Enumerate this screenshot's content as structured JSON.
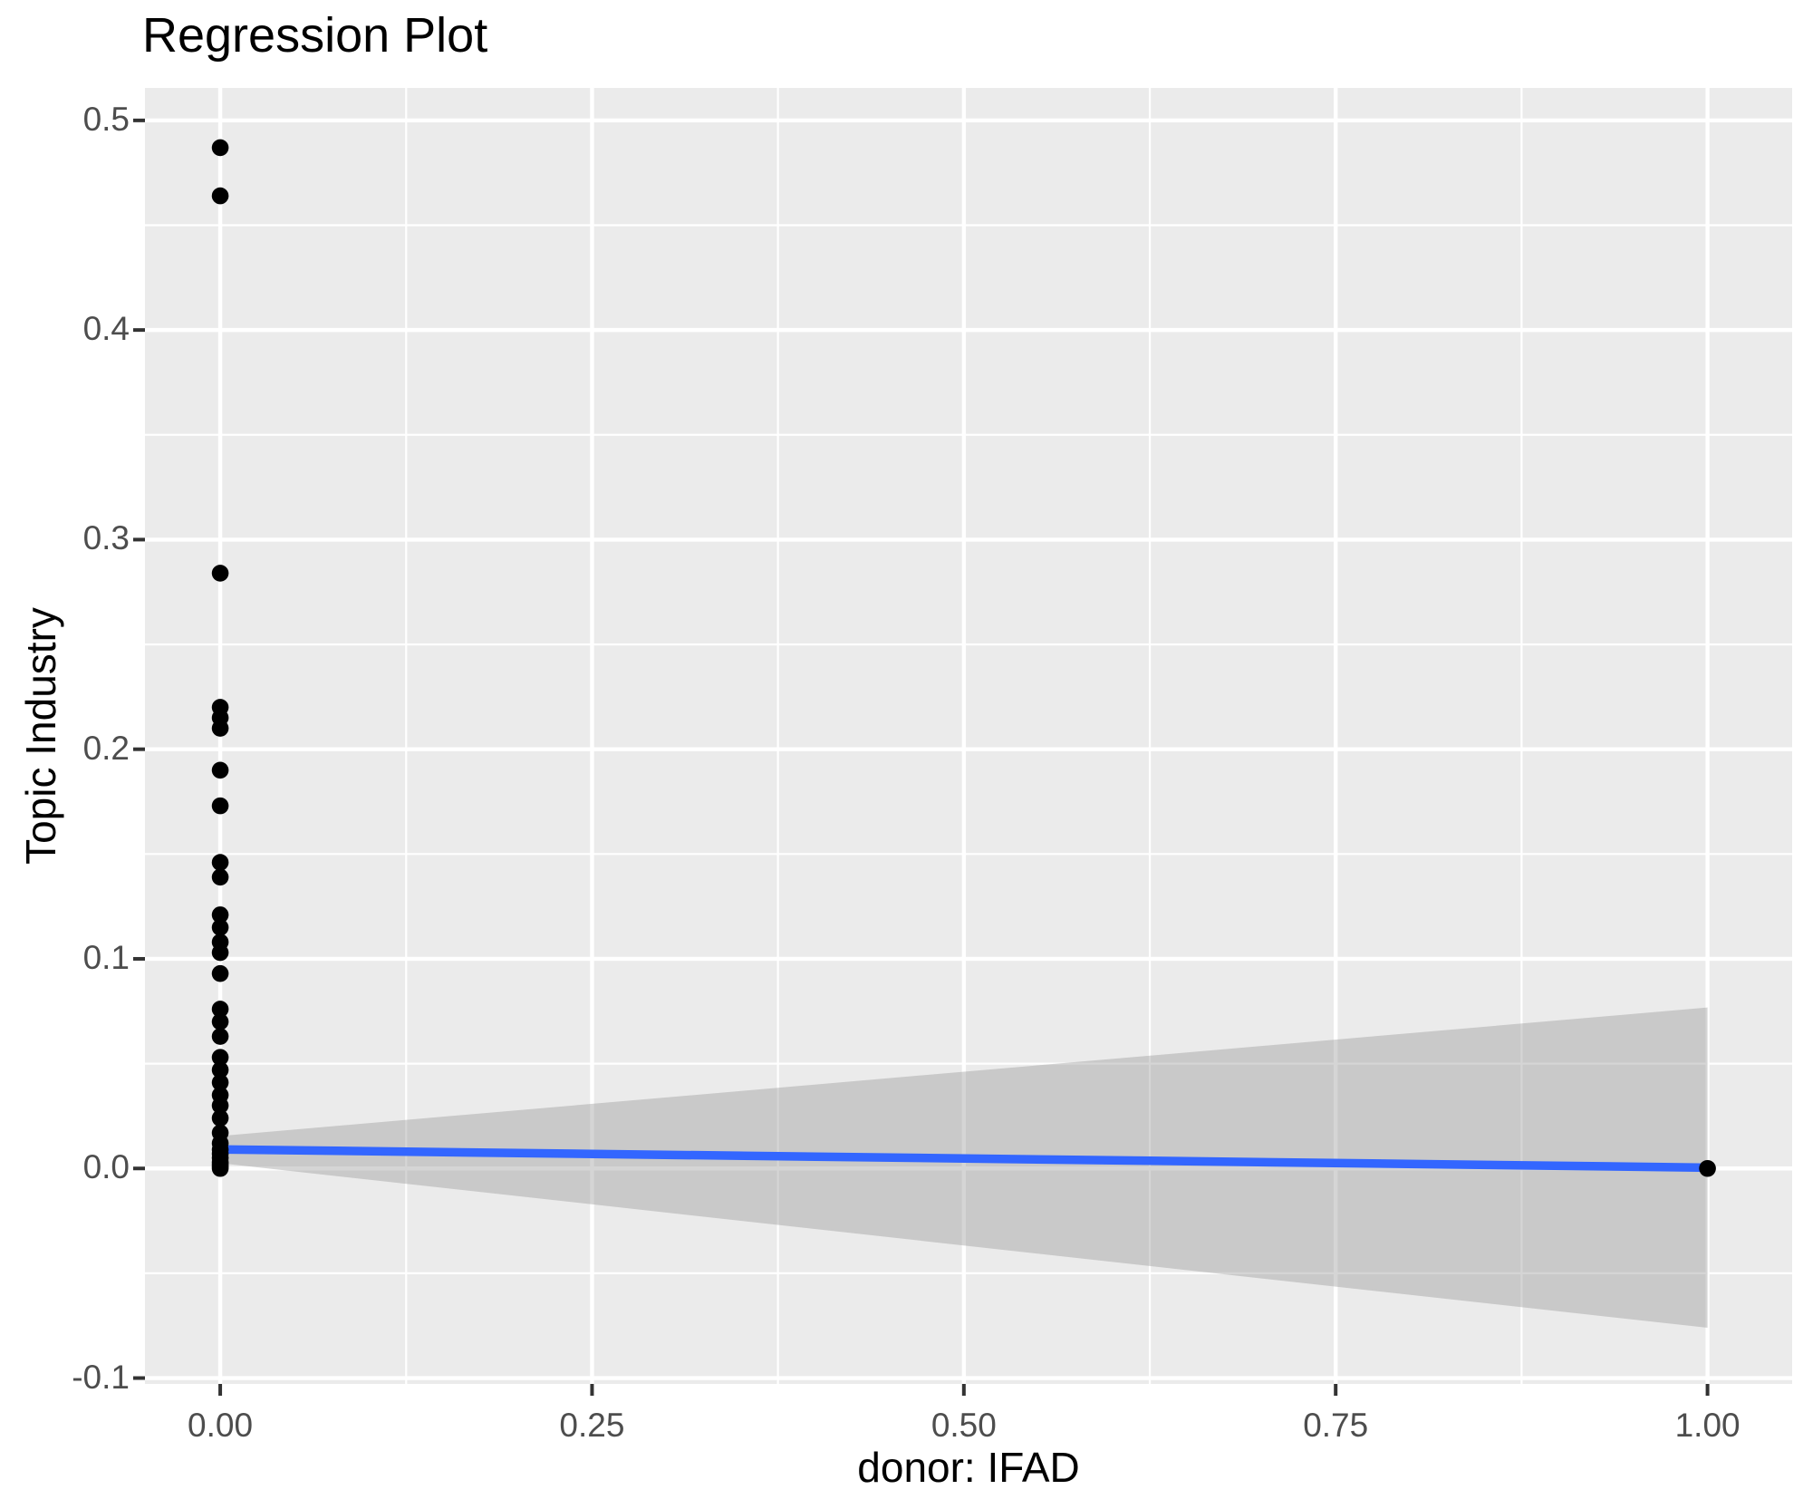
{
  "chart_data": {
    "type": "scatter",
    "title": "Regression Plot",
    "xlabel": "donor: IFAD",
    "ylabel": "Topic Industry",
    "xlim": [
      -0.0506,
      1.0569
    ],
    "ylim": [
      -0.1028,
      0.5155
    ],
    "grid": true,
    "legend": false,
    "x_ticks": {
      "values": [
        0.0,
        0.25,
        0.5,
        0.75,
        1.0
      ],
      "labels": [
        "0.00",
        "0.25",
        "0.50",
        "0.75",
        "1.00"
      ],
      "minor": [
        0.125,
        0.375,
        0.625,
        0.875
      ]
    },
    "y_ticks": {
      "values": [
        -0.1,
        0.0,
        0.1,
        0.2,
        0.3,
        0.4,
        0.5
      ],
      "labels": [
        "-0.1",
        "0.0",
        "0.1",
        "0.2",
        "0.3",
        "0.4",
        "0.5"
      ],
      "minor": [
        -0.05,
        0.05,
        0.15,
        0.25,
        0.35,
        0.45
      ]
    },
    "series": [
      {
        "name": "observations",
        "type": "scatter",
        "points": [
          [
            0,
            0.487
          ],
          [
            0,
            0.464
          ],
          [
            0,
            0.284
          ],
          [
            0,
            0.22
          ],
          [
            0,
            0.215
          ],
          [
            0,
            0.21
          ],
          [
            0,
            0.19
          ],
          [
            0,
            0.173
          ],
          [
            0,
            0.146
          ],
          [
            0,
            0.139
          ],
          [
            0,
            0.121
          ],
          [
            0,
            0.115
          ],
          [
            0,
            0.108
          ],
          [
            0,
            0.103
          ],
          [
            0,
            0.093
          ],
          [
            0,
            0.076
          ],
          [
            0,
            0.07
          ],
          [
            0,
            0.063
          ],
          [
            0,
            0.053
          ],
          [
            0,
            0.047
          ],
          [
            0,
            0.041
          ],
          [
            0,
            0.035
          ],
          [
            0,
            0.03
          ],
          [
            0,
            0.024
          ],
          [
            0,
            0.017
          ],
          [
            0,
            0.012
          ],
          [
            0,
            0.009
          ],
          [
            0,
            0.007
          ],
          [
            0,
            0.005
          ],
          [
            0,
            0.003
          ],
          [
            0,
            0.002
          ],
          [
            0,
            0.001
          ],
          [
            0,
            0.0
          ],
          [
            1,
            0.0
          ]
        ]
      },
      {
        "name": "regression-line",
        "type": "line",
        "points": [
          [
            0,
            0.0091
          ],
          [
            1,
            0.0004
          ]
        ]
      },
      {
        "name": "confidence-band",
        "type": "area",
        "upper": [
          [
            0,
            0.0155
          ],
          [
            1,
            0.0768
          ]
        ],
        "lower": [
          [
            0,
            0.0025
          ],
          [
            1,
            -0.076
          ]
        ]
      }
    ],
    "colors": {
      "panel_background": "#EBEBEB",
      "gridline": "#FFFFFF",
      "confidence_band": "rgba(150,150,150,0.4)",
      "regression_line": "#3366FF",
      "point": "#000000",
      "tick_mark": "#333333",
      "tick_label": "#4D4D4D",
      "axis_title": "#000000",
      "title": "#000000"
    }
  }
}
